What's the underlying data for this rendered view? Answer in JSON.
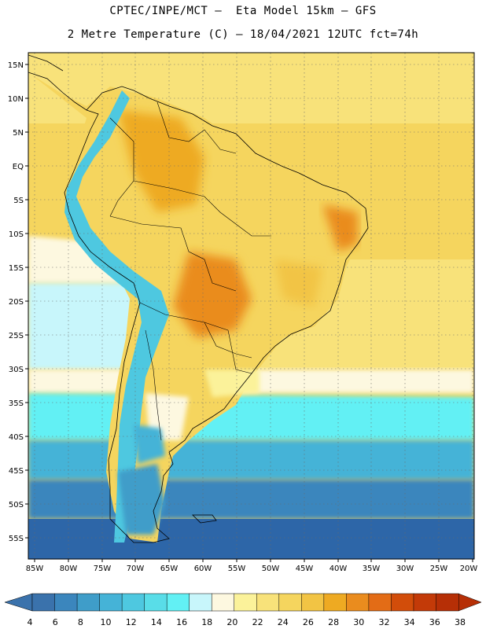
{
  "title": {
    "line1": "CPTEC/INPE/MCT –  Eta Model 15km – GFS",
    "line2": "2 Metre Temperature (C) – 18/04/2021 12UTC fct=74h"
  },
  "map": {
    "lat_labels": [
      "15N",
      "10N",
      "5N",
      "EQ",
      "5S",
      "10S",
      "15S",
      "20S",
      "25S",
      "30S",
      "35S",
      "40S",
      "45S",
      "50S",
      "55S"
    ],
    "lon_labels": [
      "85W",
      "80W",
      "75W",
      "70W",
      "65W",
      "60W",
      "55W",
      "50W",
      "45W",
      "40W",
      "35W",
      "30W",
      "25W",
      "20W"
    ]
  },
  "colorbar": {
    "labels": [
      "4",
      "6",
      "8",
      "10",
      "12",
      "14",
      "16",
      "18",
      "20",
      "22",
      "24",
      "26",
      "28",
      "30",
      "32",
      "34",
      "36",
      "38"
    ],
    "colors": [
      "#3a72ac",
      "#3b86bd",
      "#3f9dc9",
      "#45b3d7",
      "#4ec8e0",
      "#59dde8",
      "#62f0f4",
      "#c8f6fb",
      "#fdf8e0",
      "#fbf29a",
      "#f8e27a",
      "#f5d55e",
      "#f2c444",
      "#eeaa22",
      "#ea8c1e",
      "#e36c16",
      "#d24d0a",
      "#c33a08",
      "#b62f06"
    ],
    "left_arrow_color": "#3a72ac",
    "right_arrow_color": "#b62f06"
  },
  "colors": {
    "hot": "#eeaa22",
    "warm": "#f5d55e",
    "mild": "#fbf29a",
    "cool": "#c8f6fb",
    "cold": "#4ec8e0",
    "coldest": "#2d66a8"
  }
}
